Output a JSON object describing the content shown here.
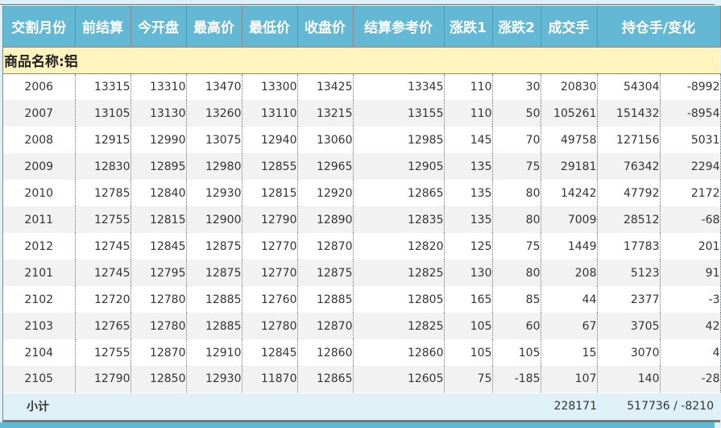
{
  "headers": [
    "交割月份",
    "前结算",
    "今开盘",
    "最高价",
    "最低价",
    "收盘价",
    "结算参考价",
    "涨跌1",
    "涨跌2",
    "成交手",
    "持仓手/变化"
  ],
  "category": "商品名称:铝",
  "rows": [
    [
      "2006",
      "13315",
      "13310",
      "13470",
      "13300",
      "13425",
      "13345",
      "110",
      "30",
      "20830",
      "54304",
      "-8992"
    ],
    [
      "2007",
      "13105",
      "13130",
      "13260",
      "13110",
      "13215",
      "13155",
      "110",
      "50",
      "105261",
      "151432",
      "-8954"
    ],
    [
      "2008",
      "12915",
      "12990",
      "13075",
      "12940",
      "13060",
      "12985",
      "145",
      "70",
      "49758",
      "127156",
      "5031"
    ],
    [
      "2009",
      "12830",
      "12895",
      "12980",
      "12855",
      "12965",
      "12905",
      "135",
      "75",
      "29181",
      "76342",
      "2294"
    ],
    [
      "2010",
      "12785",
      "12840",
      "12930",
      "12815",
      "12920",
      "12865",
      "135",
      "80",
      "14242",
      "47792",
      "2172"
    ],
    [
      "2011",
      "12755",
      "12815",
      "12900",
      "12790",
      "12890",
      "12835",
      "135",
      "80",
      "7009",
      "28512",
      "-68"
    ],
    [
      "2012",
      "12745",
      "12845",
      "12875",
      "12770",
      "12870",
      "12820",
      "125",
      "75",
      "1449",
      "17783",
      "201"
    ],
    [
      "2101",
      "12745",
      "12795",
      "12875",
      "12770",
      "12875",
      "12825",
      "130",
      "80",
      "208",
      "5123",
      "91"
    ],
    [
      "2102",
      "12720",
      "12780",
      "12885",
      "12760",
      "12885",
      "12805",
      "165",
      "85",
      "44",
      "2377",
      "-3"
    ],
    [
      "2103",
      "12765",
      "12780",
      "12885",
      "12780",
      "12870",
      "12825",
      "105",
      "60",
      "67",
      "3705",
      "42"
    ],
    [
      "2104",
      "12755",
      "12870",
      "12910",
      "12845",
      "12860",
      "12860",
      "105",
      "105",
      "15",
      "3070",
      "4"
    ],
    [
      "2105",
      "12790",
      "12850",
      "12930",
      "11870",
      "12865",
      "12605",
      "75",
      "-185",
      "107",
      "140",
      "-28"
    ]
  ],
  "subtotal": {
    "label": "小计",
    "volume": "228171",
    "open_interest": "517736 / -8210"
  }
}
